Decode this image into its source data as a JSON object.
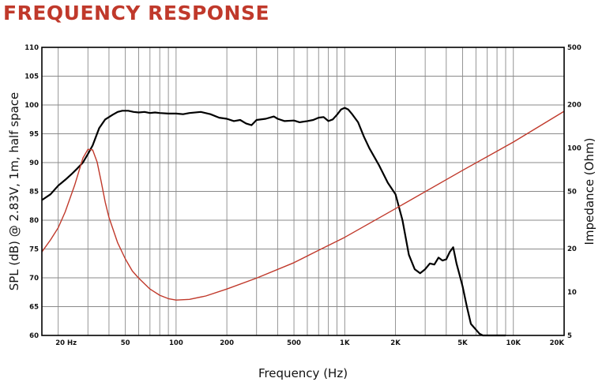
{
  "chart_data": {
    "type": "line",
    "title": "FREQUENCY RESPONSE",
    "xlabel": "Frequency (Hz)",
    "ylabel": "SPL (dB) @ 2.83V, 1m, half space",
    "y2label": "Impedance (Ohm)",
    "xscale": "log",
    "xlim": [
      16,
      20000
    ],
    "ylim": [
      60,
      110
    ],
    "y2lim": [
      5,
      500
    ],
    "y2scale": "log",
    "grid": true,
    "x_tick_labels": [
      {
        "value": 20,
        "label": "20  Hz"
      },
      {
        "value": 50,
        "label": "50"
      },
      {
        "value": 100,
        "label": "100"
      },
      {
        "value": 200,
        "label": "200"
      },
      {
        "value": 500,
        "label": "500"
      },
      {
        "value": 1000,
        "label": "1K"
      },
      {
        "value": 2000,
        "label": "2K"
      },
      {
        "value": 5000,
        "label": "5K"
      },
      {
        "value": 10000,
        "label": "10K"
      },
      {
        "value": 20000,
        "label": "20K"
      }
    ],
    "x_gridlines": [
      20,
      30,
      40,
      50,
      60,
      70,
      80,
      90,
      100,
      200,
      300,
      400,
      500,
      600,
      700,
      800,
      900,
      1000,
      2000,
      3000,
      4000,
      5000,
      6000,
      7000,
      8000,
      9000,
      10000,
      20000
    ],
    "y_ticks": [
      60,
      65,
      70,
      75,
      80,
      85,
      90,
      95,
      100,
      105,
      110
    ],
    "y2_tick_labels": [
      {
        "value": 5,
        "label": "5"
      },
      {
        "value": 10,
        "label": "10"
      },
      {
        "value": 20,
        "label": "20"
      },
      {
        "value": 50,
        "label": "50"
      },
      {
        "value": 100,
        "label": "100"
      },
      {
        "value": 200,
        "label": "200"
      },
      {
        "value": 500,
        "label": "500"
      }
    ],
    "series": [
      {
        "axis": "left",
        "color": "#000000",
        "x": [
          16,
          18,
          20,
          22,
          24,
          26,
          28,
          30,
          32,
          35,
          38,
          42,
          45,
          48,
          52,
          56,
          60,
          65,
          70,
          75,
          80,
          90,
          100,
          110,
          120,
          140,
          160,
          180,
          200,
          220,
          240,
          260,
          280,
          300,
          340,
          380,
          400,
          440,
          500,
          540,
          600,
          650,
          700,
          750,
          800,
          850,
          900,
          950,
          1000,
          1050,
          1100,
          1200,
          1300,
          1400,
          1600,
          1800,
          2000,
          2200,
          2400,
          2600,
          2800,
          3000,
          3200,
          3400,
          3600,
          3800,
          4000,
          4200,
          4400,
          4600,
          4800,
          5000,
          5300,
          5600,
          5800,
          6000,
          6300,
          6600,
          7000,
          7500,
          8000,
          8500,
          9000
        ],
        "y": [
          83.5,
          84.5,
          86,
          87,
          88,
          89,
          90,
          91.5,
          93,
          96,
          97.5,
          98.3,
          98.8,
          99,
          99,
          98.8,
          98.7,
          98.8,
          98.6,
          98.7,
          98.6,
          98.5,
          98.5,
          98.4,
          98.6,
          98.8,
          98.4,
          97.8,
          97.6,
          97.2,
          97.4,
          96.8,
          96.5,
          97.4,
          97.6,
          98,
          97.6,
          97.2,
          97.3,
          97,
          97.2,
          97.4,
          97.8,
          97.9,
          97.2,
          97.5,
          98.3,
          99.2,
          99.5,
          99.2,
          98.5,
          97,
          94.5,
          92.5,
          89.5,
          86.5,
          84.5,
          80,
          74,
          71.5,
          70.8,
          71.5,
          72.5,
          72.3,
          73.5,
          73,
          73.2,
          74.5,
          75.3,
          72.5,
          70.5,
          68.5,
          65,
          62,
          61.5,
          61,
          60.3,
          60,
          60,
          60,
          60,
          60,
          60
        ]
      },
      {
        "axis": "right",
        "color": "#c0392b",
        "x": [
          16,
          18,
          20,
          22,
          25,
          28,
          30,
          32,
          34,
          36,
          38,
          40,
          45,
          50,
          55,
          60,
          70,
          80,
          90,
          100,
          120,
          150,
          200,
          300,
          500,
          700,
          1000,
          2000,
          5000,
          10000,
          20000
        ],
        "y": [
          19,
          23,
          28,
          36,
          55,
          85,
          98,
          97,
          80,
          58,
          42,
          33,
          22,
          17,
          14,
          12.5,
          10.5,
          9.5,
          9,
          8.8,
          8.9,
          9.4,
          10.5,
          12.5,
          16,
          19.5,
          24,
          38,
          70,
          110,
          180
        ]
      }
    ]
  }
}
